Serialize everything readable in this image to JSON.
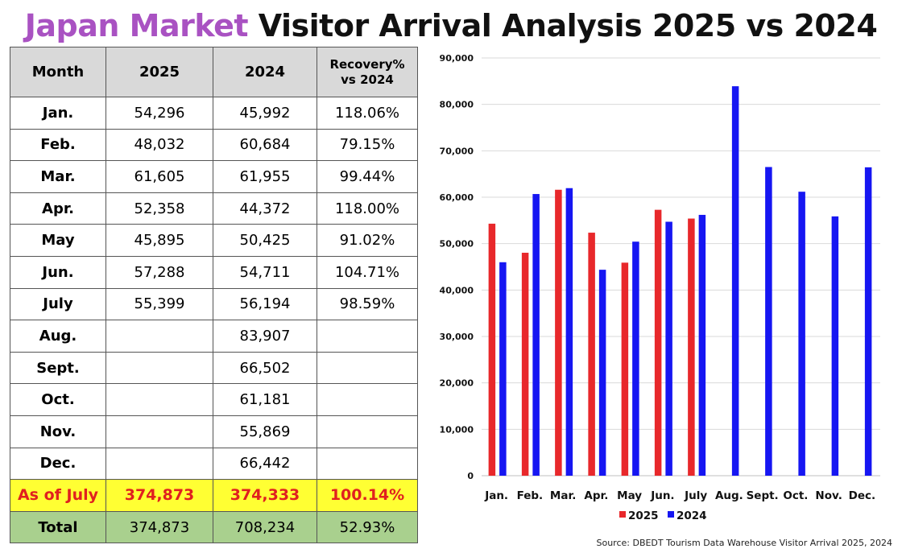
{
  "title": {
    "highlight": "Japan Market",
    "rest": " Visitor Arrival Analysis 2025 vs 2024"
  },
  "table": {
    "headers": [
      "Month",
      "2025",
      "2024",
      "Recovery%\nvs 2024"
    ],
    "rows": [
      [
        "Jan.",
        "54,296",
        "45,992",
        "118.06%"
      ],
      [
        "Feb.",
        "48,032",
        "60,684",
        "79.15%"
      ],
      [
        "Mar.",
        "61,605",
        "61,955",
        "99.44%"
      ],
      [
        "Apr.",
        "52,358",
        "44,372",
        "118.00%"
      ],
      [
        "May",
        "45,895",
        "50,425",
        "91.02%"
      ],
      [
        "Jun.",
        "57,288",
        "54,711",
        "104.71%"
      ],
      [
        "July",
        "55,399",
        "56,194",
        "98.59%"
      ],
      [
        "Aug.",
        "",
        "83,907",
        ""
      ],
      [
        "Sept.",
        "",
        "66,502",
        ""
      ],
      [
        "Oct.",
        "",
        "61,181",
        ""
      ],
      [
        "Nov.",
        "",
        "55,869",
        ""
      ],
      [
        "Dec.",
        "",
        "66,442",
        ""
      ]
    ],
    "as_of": [
      "As of July",
      "374,873",
      "374,333",
      "100.14%"
    ],
    "total": [
      "Total",
      "374,873",
      "708,234",
      "52.93%"
    ]
  },
  "chart_data": {
    "type": "bar",
    "categories": [
      "Jan.",
      "Feb.",
      "Mar.",
      "Apr.",
      "May",
      "Jun.",
      "July",
      "Aug.",
      "Sept.",
      "Oct.",
      "Nov.",
      "Dec."
    ],
    "series": [
      {
        "name": "2025",
        "color": "#e8282b",
        "values": [
          54296,
          48032,
          61605,
          52358,
          45895,
          57288,
          55399,
          null,
          null,
          null,
          null,
          null
        ]
      },
      {
        "name": "2024",
        "color": "#1616f2",
        "values": [
          45992,
          60684,
          61955,
          44372,
          50425,
          54711,
          56194,
          83907,
          66502,
          61181,
          55869,
          66442
        ]
      }
    ],
    "ylim": [
      0,
      90000
    ],
    "yticks": [
      "0",
      "10,000",
      "20,000",
      "30,000",
      "40,000",
      "50,000",
      "60,000",
      "70,000",
      "80,000",
      "90,000"
    ],
    "grid": true,
    "legend": "bottom"
  },
  "source": "Source: DBEDT Tourism Data Warehouse Visitor Arrival 2025, 2024"
}
